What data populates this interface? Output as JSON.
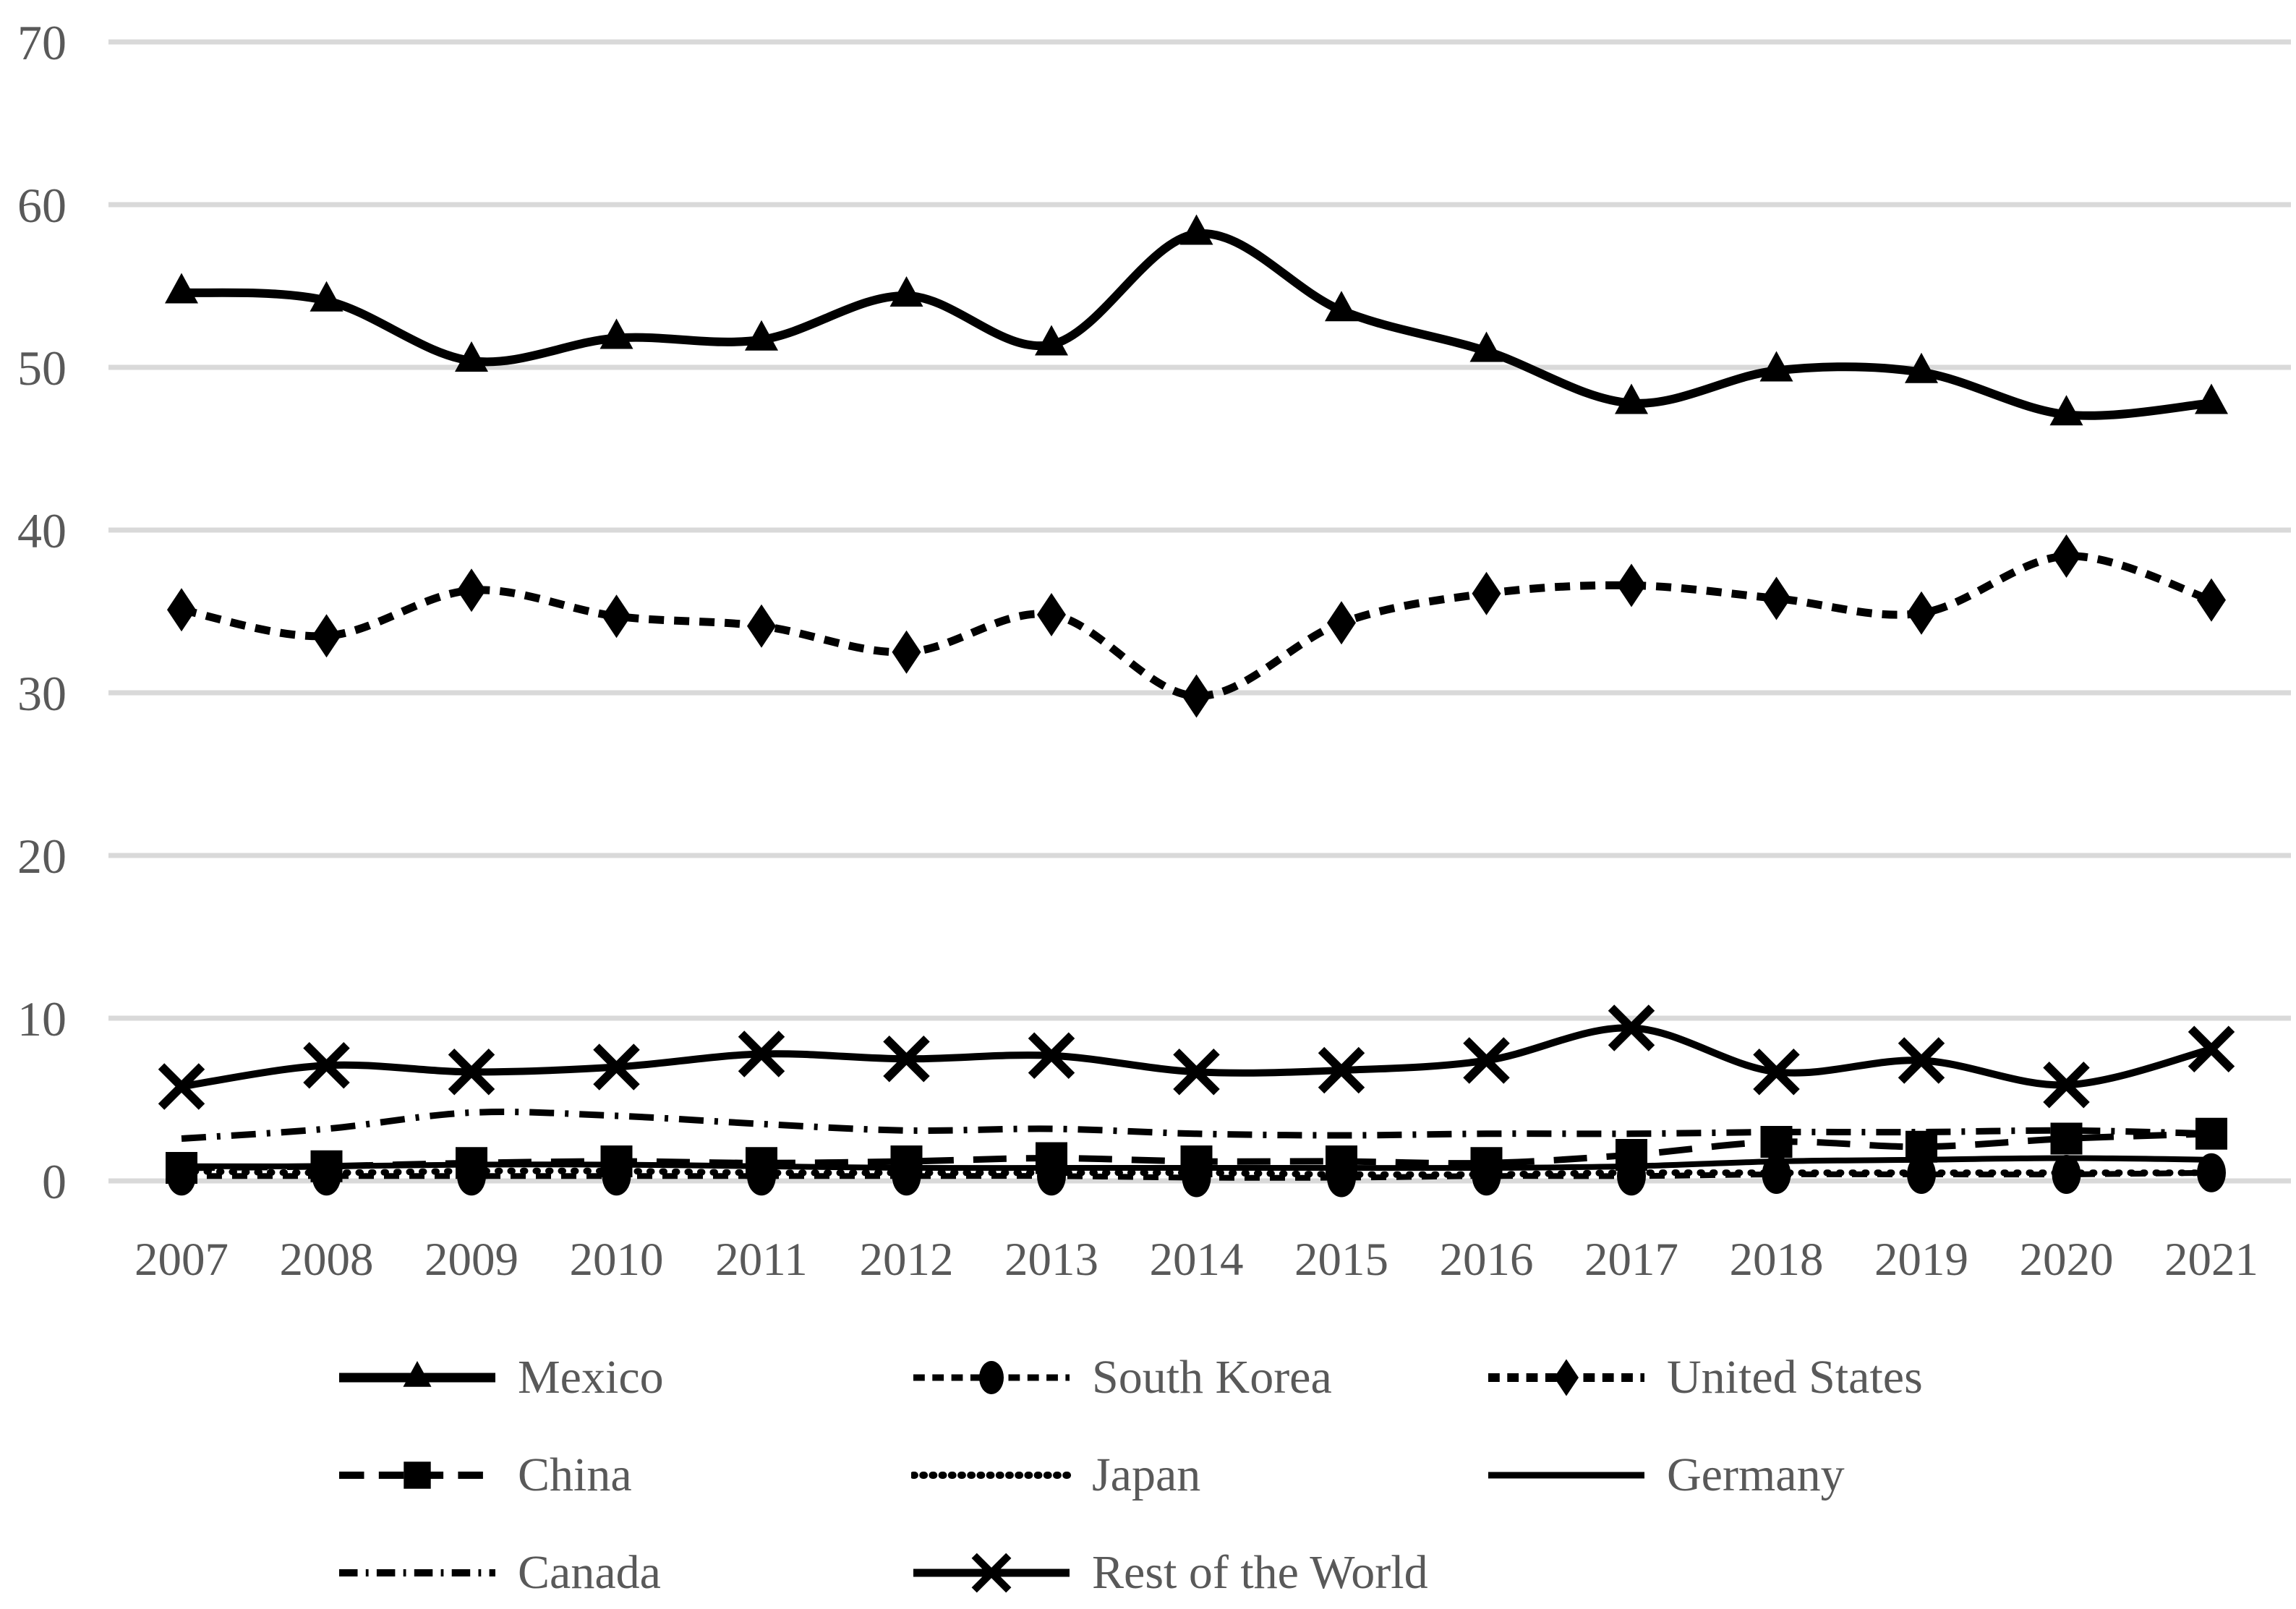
{
  "figure": {
    "background": "#ffffff"
  },
  "colors": {
    "series": "#000000",
    "gridline": "#d9d9d9",
    "tick_text": "#595959",
    "legend_text": "#595959"
  },
  "axes": {
    "y_ticks": [
      "0",
      "10",
      "20",
      "30",
      "40",
      "50",
      "60",
      "70"
    ],
    "x_ticks": [
      "2007",
      "2008",
      "2009",
      "2010",
      "2011",
      "2012",
      "2013",
      "2014",
      "2015",
      "2016",
      "2017",
      "2018",
      "2019",
      "2020",
      "2021"
    ]
  },
  "chart_data": {
    "type": "line",
    "x": [
      2007,
      2008,
      2009,
      2010,
      2011,
      2012,
      2013,
      2014,
      2015,
      2016,
      2017,
      2018,
      2019,
      2020,
      2021
    ],
    "ylim": [
      0,
      70
    ],
    "yticks": [
      0,
      10,
      20,
      30,
      40,
      50,
      60,
      70
    ],
    "grid": "horizontal",
    "legend_position": "bottom",
    "legend": {
      "rows": [
        [
          0,
          1,
          2
        ],
        [
          3,
          4,
          5
        ],
        [
          6,
          7
        ]
      ]
    },
    "series": [
      {
        "name": "Mexico",
        "marker": "triangle",
        "line": "solid",
        "stroke_width": 12,
        "values": [
          54.6,
          54.1,
          50.4,
          51.8,
          51.7,
          54.4,
          51.4,
          58.2,
          53.5,
          51.0,
          47.8,
          49.8,
          49.7,
          47.1,
          47.8
        ]
      },
      {
        "name": "South Korea",
        "marker": "circle",
        "line": "dashed",
        "stroke_width": 8,
        "values": [
          0.3,
          0.3,
          0.3,
          0.3,
          0.3,
          0.3,
          0.3,
          0.2,
          0.2,
          0.3,
          0.3,
          0.4,
          0.4,
          0.4,
          0.5
        ]
      },
      {
        "name": "United States",
        "marker": "diamond",
        "line": "dashed",
        "stroke_width": 11,
        "values": [
          35.1,
          33.5,
          36.3,
          34.7,
          34.1,
          32.5,
          34.8,
          29.8,
          34.3,
          36.1,
          36.6,
          35.8,
          34.9,
          38.4,
          35.7
        ]
      },
      {
        "name": "China",
        "marker": "square",
        "line": "longdash",
        "stroke_width": 9,
        "values": [
          0.8,
          0.9,
          1.1,
          1.2,
          1.1,
          1.2,
          1.4,
          1.2,
          1.2,
          1.1,
          1.6,
          2.4,
          2.1,
          2.6,
          2.9
        ]
      },
      {
        "name": "Japan",
        "marker": "none",
        "line": "dotted",
        "stroke_width": 9,
        "values": [
          0.6,
          0.5,
          0.6,
          0.6,
          0.5,
          0.5,
          0.5,
          0.5,
          0.4,
          0.4,
          0.5,
          0.5,
          0.5,
          0.5,
          0.5
        ]
      },
      {
        "name": "Germany",
        "marker": "none",
        "line": "solid",
        "stroke_width": 8,
        "values": [
          0.9,
          0.9,
          1.0,
          1.0,
          0.9,
          0.8,
          0.8,
          0.8,
          0.8,
          0.8,
          0.9,
          1.2,
          1.3,
          1.4,
          1.3
        ]
      },
      {
        "name": "Canada",
        "marker": "none",
        "line": "dashdot",
        "stroke_width": 9,
        "values": [
          2.6,
          3.2,
          4.2,
          4.0,
          3.5,
          3.1,
          3.2,
          2.9,
          2.8,
          2.9,
          2.9,
          3.0,
          3.0,
          3.1,
          2.9
        ]
      },
      {
        "name": "Rest of the World",
        "marker": "x",
        "line": "solid",
        "stroke_width": 10,
        "values": [
          5.8,
          7.1,
          6.7,
          7.0,
          7.8,
          7.5,
          7.7,
          6.7,
          6.8,
          7.4,
          9.4,
          6.7,
          7.4,
          5.9,
          8.1
        ]
      }
    ]
  }
}
